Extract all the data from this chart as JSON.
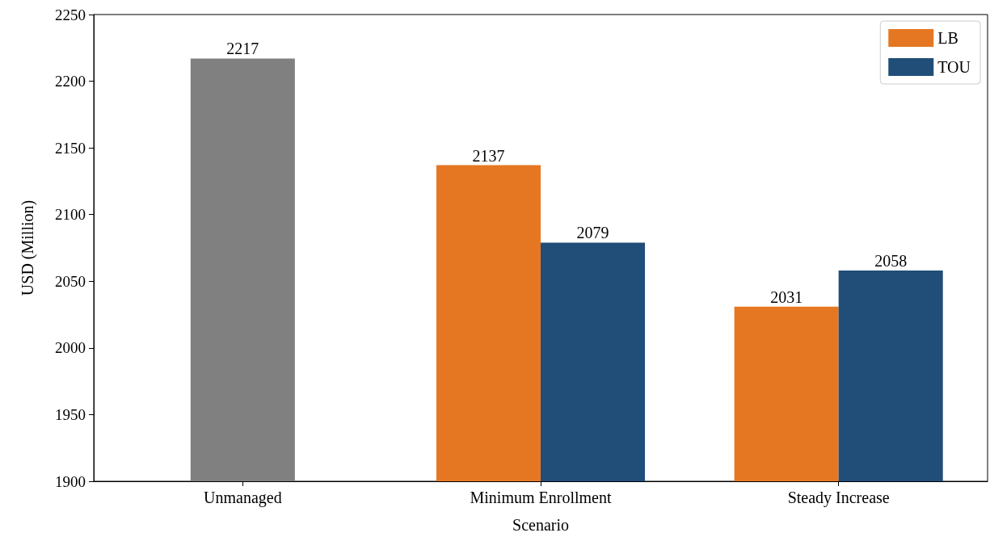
{
  "chart_data": {
    "type": "bar",
    "xlabel": "Scenario",
    "ylabel": "USD (Million)",
    "categories": [
      "Unmanaged",
      "Minimum Enrollment",
      "Steady Increase"
    ],
    "series": [
      {
        "color": "#808080",
        "values": [
          2217,
          null,
          null
        ]
      },
      {
        "name": "LB",
        "color": "#e67722",
        "values": [
          null,
          2137,
          2031
        ]
      },
      {
        "name": "TOU",
        "color": "#204e78",
        "values": [
          null,
          2079,
          2058
        ]
      }
    ],
    "ylim": [
      1900,
      2250
    ],
    "yticks": [
      1900,
      1950,
      2000,
      2050,
      2100,
      2150,
      2200,
      2250
    ],
    "data_labels": true,
    "legend": "top right",
    "grid": false
  }
}
